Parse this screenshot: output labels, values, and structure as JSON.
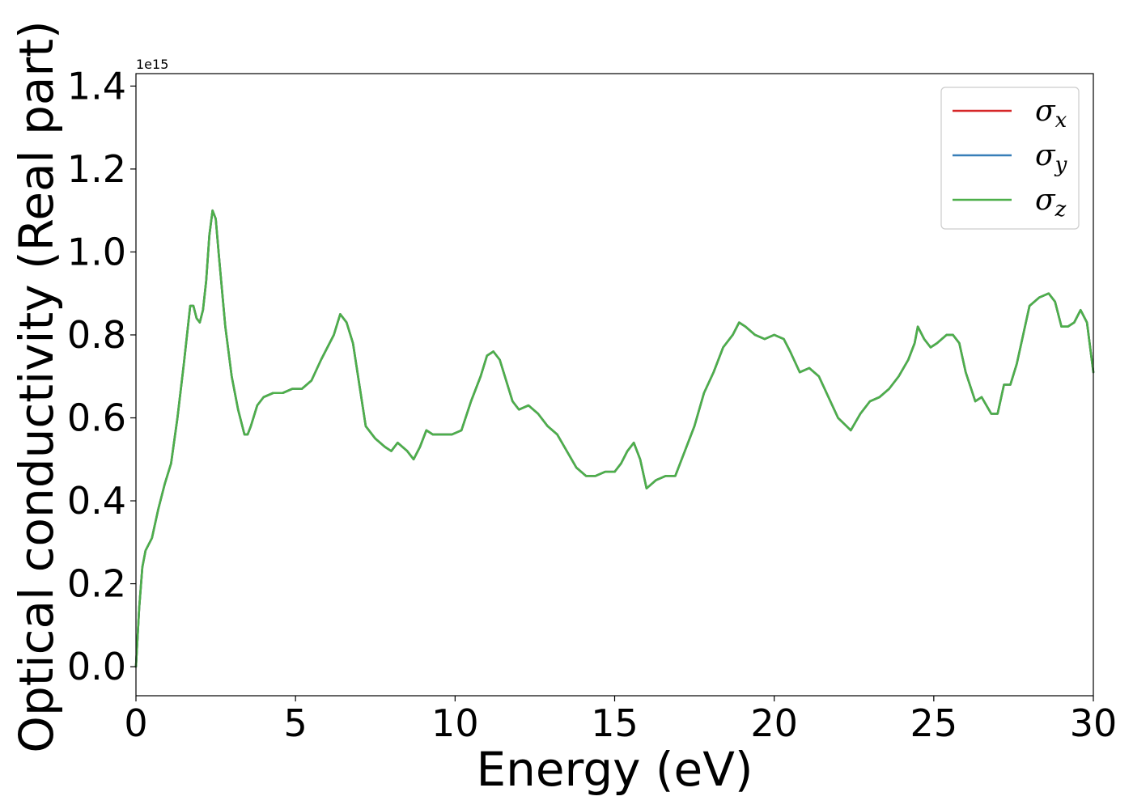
{
  "chart_data": {
    "type": "line",
    "title": "",
    "xlabel": "Energy (eV)",
    "ylabel": "Optical conductivity (Real part)",
    "y_offset_label": "1e15",
    "xlim": [
      0,
      30
    ],
    "ylim": [
      -0.07,
      1.43
    ],
    "xticks": [
      0,
      5,
      10,
      15,
      20,
      25,
      30
    ],
    "xtick_labels": [
      "0",
      "5",
      "10",
      "15",
      "20",
      "25",
      "30"
    ],
    "yticks": [
      0.0,
      0.2,
      0.4,
      0.6,
      0.8,
      1.0,
      1.2,
      1.4
    ],
    "ytick_labels": [
      "0.0",
      "0.2",
      "0.4",
      "0.6",
      "0.8",
      "1.0",
      "1.2",
      "1.4"
    ],
    "grid": false,
    "legend_position": "top-right",
    "x": [
      0.0,
      0.1,
      0.2,
      0.3,
      0.5,
      0.7,
      0.9,
      1.1,
      1.3,
      1.5,
      1.7,
      1.8,
      1.9,
      2.0,
      2.1,
      2.2,
      2.3,
      2.4,
      2.5,
      2.6,
      2.8,
      3.0,
      3.2,
      3.4,
      3.5,
      3.6,
      3.8,
      4.0,
      4.3,
      4.6,
      4.9,
      5.2,
      5.5,
      5.8,
      6.0,
      6.2,
      6.4,
      6.6,
      6.8,
      7.0,
      7.2,
      7.5,
      7.8,
      8.0,
      8.2,
      8.5,
      8.7,
      8.9,
      9.1,
      9.3,
      9.6,
      9.9,
      10.2,
      10.5,
      10.8,
      11.0,
      11.2,
      11.4,
      11.6,
      11.8,
      12.0,
      12.3,
      12.6,
      12.9,
      13.2,
      13.5,
      13.8,
      14.1,
      14.4,
      14.7,
      15.0,
      15.2,
      15.4,
      15.6,
      15.8,
      16.0,
      16.3,
      16.6,
      16.9,
      17.2,
      17.5,
      17.8,
      18.1,
      18.4,
      18.7,
      18.9,
      19.1,
      19.4,
      19.7,
      20.0,
      20.3,
      20.5,
      20.8,
      21.1,
      21.4,
      21.7,
      22.0,
      22.4,
      22.7,
      23.0,
      23.3,
      23.6,
      23.9,
      24.2,
      24.4,
      24.5,
      24.7,
      24.9,
      25.1,
      25.4,
      25.6,
      25.8,
      26.0,
      26.3,
      26.5,
      26.8,
      27.0,
      27.2,
      27.4,
      27.6,
      27.8,
      28.0,
      28.3,
      28.6,
      28.8,
      29.0,
      29.2,
      29.4,
      29.6,
      29.8,
      30.0
    ],
    "series": [
      {
        "name": "σx",
        "label_base": "σ",
        "label_sub": "x",
        "color": "#d62728",
        "values": [
          0.0,
          0.14,
          0.24,
          0.28,
          0.31,
          0.38,
          0.44,
          0.49,
          0.6,
          0.73,
          0.87,
          0.87,
          0.84,
          0.83,
          0.86,
          0.93,
          1.04,
          1.1,
          1.08,
          0.99,
          0.82,
          0.7,
          0.62,
          0.56,
          0.56,
          0.58,
          0.63,
          0.65,
          0.66,
          0.66,
          0.67,
          0.67,
          0.69,
          0.74,
          0.77,
          0.8,
          0.85,
          0.83,
          0.78,
          0.68,
          0.58,
          0.55,
          0.53,
          0.52,
          0.54,
          0.52,
          0.5,
          0.53,
          0.57,
          0.56,
          0.56,
          0.56,
          0.57,
          0.64,
          0.7,
          0.75,
          0.76,
          0.74,
          0.69,
          0.64,
          0.62,
          0.63,
          0.61,
          0.58,
          0.56,
          0.52,
          0.48,
          0.46,
          0.46,
          0.47,
          0.47,
          0.49,
          0.52,
          0.54,
          0.5,
          0.43,
          0.45,
          0.46,
          0.46,
          0.52,
          0.58,
          0.66,
          0.71,
          0.77,
          0.8,
          0.83,
          0.82,
          0.8,
          0.79,
          0.8,
          0.79,
          0.76,
          0.71,
          0.72,
          0.7,
          0.65,
          0.6,
          0.57,
          0.61,
          0.64,
          0.65,
          0.67,
          0.7,
          0.74,
          0.78,
          0.82,
          0.79,
          0.77,
          0.78,
          0.8,
          0.8,
          0.78,
          0.71,
          0.64,
          0.65,
          0.61,
          0.61,
          0.68,
          0.68,
          0.73,
          0.8,
          0.87,
          0.89,
          0.9,
          0.88,
          0.82,
          0.82,
          0.83,
          0.86,
          0.83,
          0.71
        ]
      },
      {
        "name": "σy",
        "label_base": "σ",
        "label_sub": "y",
        "color": "#377eb8",
        "values": [
          0.0,
          0.14,
          0.24,
          0.28,
          0.31,
          0.38,
          0.44,
          0.49,
          0.6,
          0.73,
          0.87,
          0.87,
          0.84,
          0.83,
          0.86,
          0.93,
          1.04,
          1.1,
          1.08,
          0.99,
          0.82,
          0.7,
          0.62,
          0.56,
          0.56,
          0.58,
          0.63,
          0.65,
          0.66,
          0.66,
          0.67,
          0.67,
          0.69,
          0.74,
          0.77,
          0.8,
          0.85,
          0.83,
          0.78,
          0.68,
          0.58,
          0.55,
          0.53,
          0.52,
          0.54,
          0.52,
          0.5,
          0.53,
          0.57,
          0.56,
          0.56,
          0.56,
          0.57,
          0.64,
          0.7,
          0.75,
          0.76,
          0.74,
          0.69,
          0.64,
          0.62,
          0.63,
          0.61,
          0.58,
          0.56,
          0.52,
          0.48,
          0.46,
          0.46,
          0.47,
          0.47,
          0.49,
          0.52,
          0.54,
          0.5,
          0.43,
          0.45,
          0.46,
          0.46,
          0.52,
          0.58,
          0.66,
          0.71,
          0.77,
          0.8,
          0.83,
          0.82,
          0.8,
          0.79,
          0.8,
          0.79,
          0.76,
          0.71,
          0.72,
          0.7,
          0.65,
          0.6,
          0.57,
          0.61,
          0.64,
          0.65,
          0.67,
          0.7,
          0.74,
          0.78,
          0.82,
          0.79,
          0.77,
          0.78,
          0.8,
          0.8,
          0.78,
          0.71,
          0.64,
          0.65,
          0.61,
          0.61,
          0.68,
          0.68,
          0.73,
          0.8,
          0.87,
          0.89,
          0.9,
          0.88,
          0.82,
          0.82,
          0.83,
          0.86,
          0.83,
          0.71
        ]
      },
      {
        "name": "σz",
        "label_base": "σ",
        "label_sub": "z",
        "color": "#4daf4a",
        "values": [
          0.0,
          0.14,
          0.24,
          0.28,
          0.31,
          0.38,
          0.44,
          0.49,
          0.6,
          0.73,
          0.87,
          0.87,
          0.84,
          0.83,
          0.86,
          0.93,
          1.04,
          1.1,
          1.08,
          0.99,
          0.82,
          0.7,
          0.62,
          0.56,
          0.56,
          0.58,
          0.63,
          0.65,
          0.66,
          0.66,
          0.67,
          0.67,
          0.69,
          0.74,
          0.77,
          0.8,
          0.85,
          0.83,
          0.78,
          0.68,
          0.58,
          0.55,
          0.53,
          0.52,
          0.54,
          0.52,
          0.5,
          0.53,
          0.57,
          0.56,
          0.56,
          0.56,
          0.57,
          0.64,
          0.7,
          0.75,
          0.76,
          0.74,
          0.69,
          0.64,
          0.62,
          0.63,
          0.61,
          0.58,
          0.56,
          0.52,
          0.48,
          0.46,
          0.46,
          0.47,
          0.47,
          0.49,
          0.52,
          0.54,
          0.5,
          0.43,
          0.45,
          0.46,
          0.46,
          0.52,
          0.58,
          0.66,
          0.71,
          0.77,
          0.8,
          0.83,
          0.82,
          0.8,
          0.79,
          0.8,
          0.79,
          0.76,
          0.71,
          0.72,
          0.7,
          0.65,
          0.6,
          0.57,
          0.61,
          0.64,
          0.65,
          0.67,
          0.7,
          0.74,
          0.78,
          0.82,
          0.79,
          0.77,
          0.78,
          0.8,
          0.8,
          0.78,
          0.71,
          0.64,
          0.65,
          0.61,
          0.61,
          0.68,
          0.68,
          0.73,
          0.8,
          0.87,
          0.89,
          0.9,
          0.88,
          0.82,
          0.82,
          0.83,
          0.86,
          0.83,
          0.71
        ]
      }
    ]
  }
}
